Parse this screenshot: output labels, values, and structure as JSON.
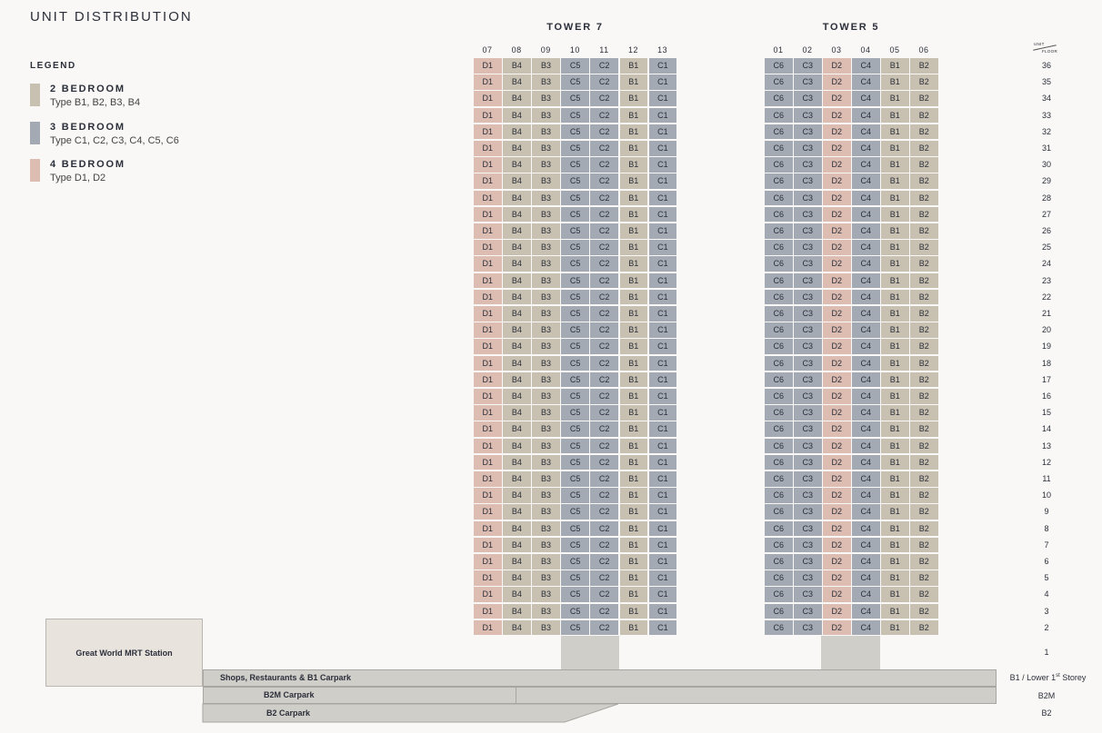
{
  "title": "UNIT DISTRIBUTION",
  "legend": {
    "title": "LEGEND",
    "items": [
      {
        "title": "2 BEDROOM",
        "types": "Type B1, B2, B3, B4",
        "color": "#c8c0b0"
      },
      {
        "title": "3 BEDROOM",
        "types": "Type C1, C2, C3, C4, C5, C6",
        "color": "#a3aab4"
      },
      {
        "title": "4 BEDROOM",
        "types": "Type D1, D2",
        "color": "#ddbcb1"
      }
    ]
  },
  "towers": [
    {
      "name": "TOWER 7",
      "units": [
        "07",
        "08",
        "09",
        "10",
        "11",
        "12",
        "13"
      ],
      "types": [
        "D1",
        "B4",
        "B3",
        "C5",
        "C2",
        "B1",
        "C1"
      ]
    },
    {
      "name": "TOWER 5",
      "units": [
        "01",
        "02",
        "03",
        "04",
        "05",
        "06"
      ],
      "types": [
        "C6",
        "C3",
        "D2",
        "C4",
        "B1",
        "B2"
      ]
    }
  ],
  "floor_axis": {
    "unit_label": "UNIT",
    "floor_label": "FLOOR"
  },
  "floors": [
    "36",
    "35",
    "34",
    "33",
    "32",
    "31",
    "30",
    "29",
    "28",
    "27",
    "26",
    "25",
    "24",
    "23",
    "22",
    "21",
    "20",
    "19",
    "18",
    "17",
    "16",
    "15",
    "14",
    "13",
    "12",
    "11",
    "10",
    "9",
    "8",
    "7",
    "6",
    "5",
    "4",
    "3",
    "2"
  ],
  "ground_floor": "1",
  "basement": {
    "mrt": "Great World MRT Station",
    "b1_label": "Shops, Restaurants & B1 Carpark",
    "b2m_label": "B2M Carpark",
    "b2_label": "B2 Carpark",
    "b1_level_prefix": "B1 / Lower 1",
    "b1_level_sup": "st",
    "b1_level_suffix": " Storey",
    "b2m_level": "B2M",
    "b2_level": "B2"
  }
}
